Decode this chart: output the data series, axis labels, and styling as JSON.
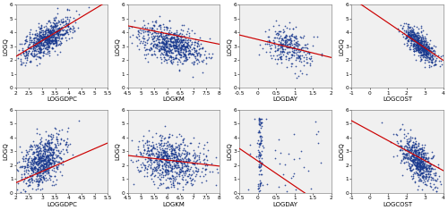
{
  "panels": [
    {
      "xlabel": "LOGGDPC",
      "ylabel": "LOGQ",
      "xlim": [
        2.0,
        5.5
      ],
      "ylim": [
        0,
        6
      ],
      "xticks": [
        2.0,
        2.5,
        3.0,
        3.5,
        4.0,
        4.5,
        5.0,
        5.5
      ],
      "yticks": [
        0,
        1,
        2,
        3,
        4,
        5,
        6
      ],
      "slope": 1.14,
      "intercept": -0.0,
      "scatter_seed": 42,
      "n_points": 700,
      "x_center": 3.2,
      "x_std": 0.48,
      "y_center": 3.6,
      "y_std": 0.75,
      "corr": 0.7
    },
    {
      "xlabel": "LOGKM",
      "ylabel": "LOGQ",
      "xlim": [
        4.5,
        8.0
      ],
      "ylim": [
        0,
        6
      ],
      "xticks": [
        4.5,
        5.0,
        5.5,
        6.0,
        6.5,
        7.0,
        7.5,
        8.0
      ],
      "yticks": [
        0,
        1,
        2,
        3,
        4,
        5,
        6
      ],
      "slope": -0.38,
      "intercept": 6.2,
      "scatter_seed": 43,
      "n_points": 700,
      "x_center": 6.2,
      "x_std": 0.6,
      "y_center": 3.1,
      "y_std": 0.7,
      "corr": -0.38
    },
    {
      "xlabel": "LOGDAY",
      "ylabel": "LOGQ",
      "xlim": [
        -0.5,
        2.0
      ],
      "ylim": [
        0,
        6
      ],
      "xticks": [
        -0.5,
        0.0,
        0.5,
        1.0,
        1.5,
        2.0
      ],
      "yticks": [
        0,
        1,
        2,
        3,
        4,
        5,
        6
      ],
      "slope": -0.65,
      "intercept": 3.5,
      "scatter_seed": 44,
      "n_points": 300,
      "x_center": 0.85,
      "x_std": 0.3,
      "y_center": 2.9,
      "y_std": 0.72,
      "corr": -0.28
    },
    {
      "xlabel": "LOGCOST",
      "ylabel": "LOGQ",
      "xlim": [
        -1.0,
        4.0
      ],
      "ylim": [
        0,
        6
      ],
      "xticks": [
        -1.0,
        0.0,
        1.0,
        2.0,
        3.0,
        4.0
      ],
      "yticks": [
        0,
        1,
        2,
        3,
        4,
        5,
        6
      ],
      "slope": -0.9,
      "intercept": 5.6,
      "scatter_seed": 45,
      "n_points": 600,
      "x_center": 2.75,
      "x_std": 0.45,
      "y_center": 3.1,
      "y_std": 0.65,
      "corr": -0.78
    },
    {
      "xlabel": "LOGGDPC",
      "ylabel": "LOGQ",
      "xlim": [
        2.0,
        5.5
      ],
      "ylim": [
        0,
        6
      ],
      "xticks": [
        2.0,
        2.5,
        3.0,
        3.5,
        4.0,
        4.5,
        5.0,
        5.5
      ],
      "yticks": [
        0,
        1,
        2,
        3,
        4,
        5,
        6
      ],
      "slope": 0.82,
      "intercept": -0.9,
      "scatter_seed": 46,
      "n_points": 700,
      "x_center": 3.0,
      "x_std": 0.42,
      "y_center": 2.3,
      "y_std": 0.9,
      "corr": 0.48
    },
    {
      "xlabel": "LOGKM",
      "ylabel": "LOGQ",
      "xlim": [
        4.5,
        8.0
      ],
      "ylim": [
        0,
        6
      ],
      "xticks": [
        4.5,
        5.0,
        5.5,
        6.0,
        6.5,
        7.0,
        7.5,
        8.0
      ],
      "yticks": [
        0,
        1,
        2,
        3,
        4,
        5,
        6
      ],
      "slope": -0.22,
      "intercept": 3.7,
      "scatter_seed": 47,
      "n_points": 700,
      "x_center": 6.1,
      "x_std": 0.65,
      "y_center": 2.3,
      "y_std": 0.85,
      "corr": -0.18
    },
    {
      "xlabel": "LOGDAY",
      "ylabel": "LOGQ",
      "xlim": [
        -0.5,
        2.0
      ],
      "ylim": [
        0,
        6
      ],
      "xticks": [
        -0.5,
        0.0,
        0.5,
        1.0,
        1.5,
        2.0
      ],
      "yticks": [
        0,
        1,
        2,
        3,
        4,
        5,
        6
      ],
      "slope": -1.8,
      "intercept": 2.3,
      "scatter_seed": 48,
      "n_points": 150,
      "special": true
    },
    {
      "xlabel": "LOGCOST",
      "ylabel": "LOGQ",
      "xlim": [
        -1.0,
        4.0
      ],
      "ylim": [
        0,
        6
      ],
      "xticks": [
        -1.0,
        0.0,
        1.0,
        2.0,
        3.0,
        4.0
      ],
      "yticks": [
        0,
        1,
        2,
        3,
        4,
        5,
        6
      ],
      "slope": -0.72,
      "intercept": 4.5,
      "scatter_seed": 49,
      "n_points": 600,
      "x_center": 2.6,
      "x_std": 0.5,
      "y_center": 2.3,
      "y_std": 0.82,
      "corr": -0.62
    }
  ],
  "dot_color": "#1a3a8f",
  "line_color": "#cc0000",
  "bg_color": "#f0f0f0",
  "dot_size": 1.5,
  "dot_alpha": 0.85,
  "label_fontsize": 5.0,
  "tick_fontsize": 4.2
}
